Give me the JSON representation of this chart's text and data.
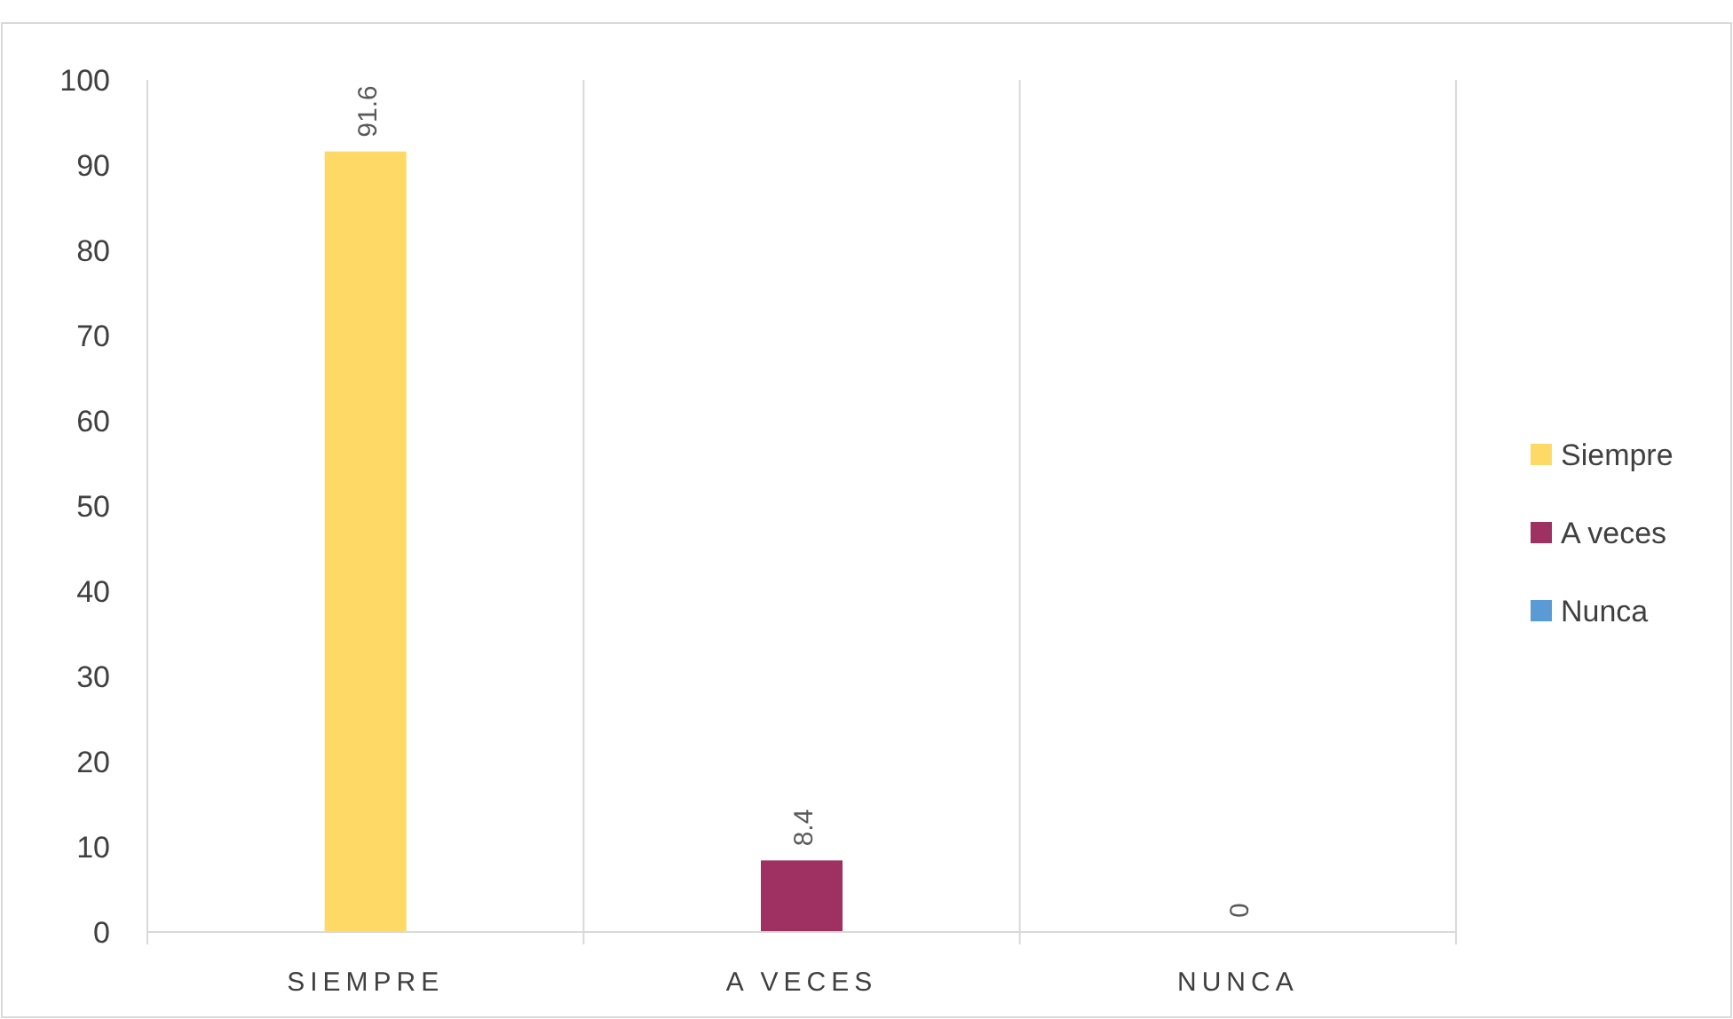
{
  "chart_data": {
    "type": "bar",
    "stacked": true,
    "categories": [
      "SIEMPRE",
      "A VECES",
      "NUNCA"
    ],
    "series": [
      {
        "name": "Siempre",
        "color": "#ffd966",
        "values": [
          91.6,
          null,
          null
        ]
      },
      {
        "name": "A veces",
        "color": "#9e3062",
        "values": [
          null,
          8.4,
          null
        ]
      },
      {
        "name": "Nunca",
        "color": "#5b9bd5",
        "values": [
          null,
          null,
          0
        ]
      }
    ],
    "ylim": [
      0,
      100
    ],
    "yticks": [
      0,
      10,
      20,
      30,
      40,
      50,
      60,
      70,
      80,
      90,
      100
    ],
    "grid": "x",
    "legend": "right",
    "data_labels": true
  }
}
